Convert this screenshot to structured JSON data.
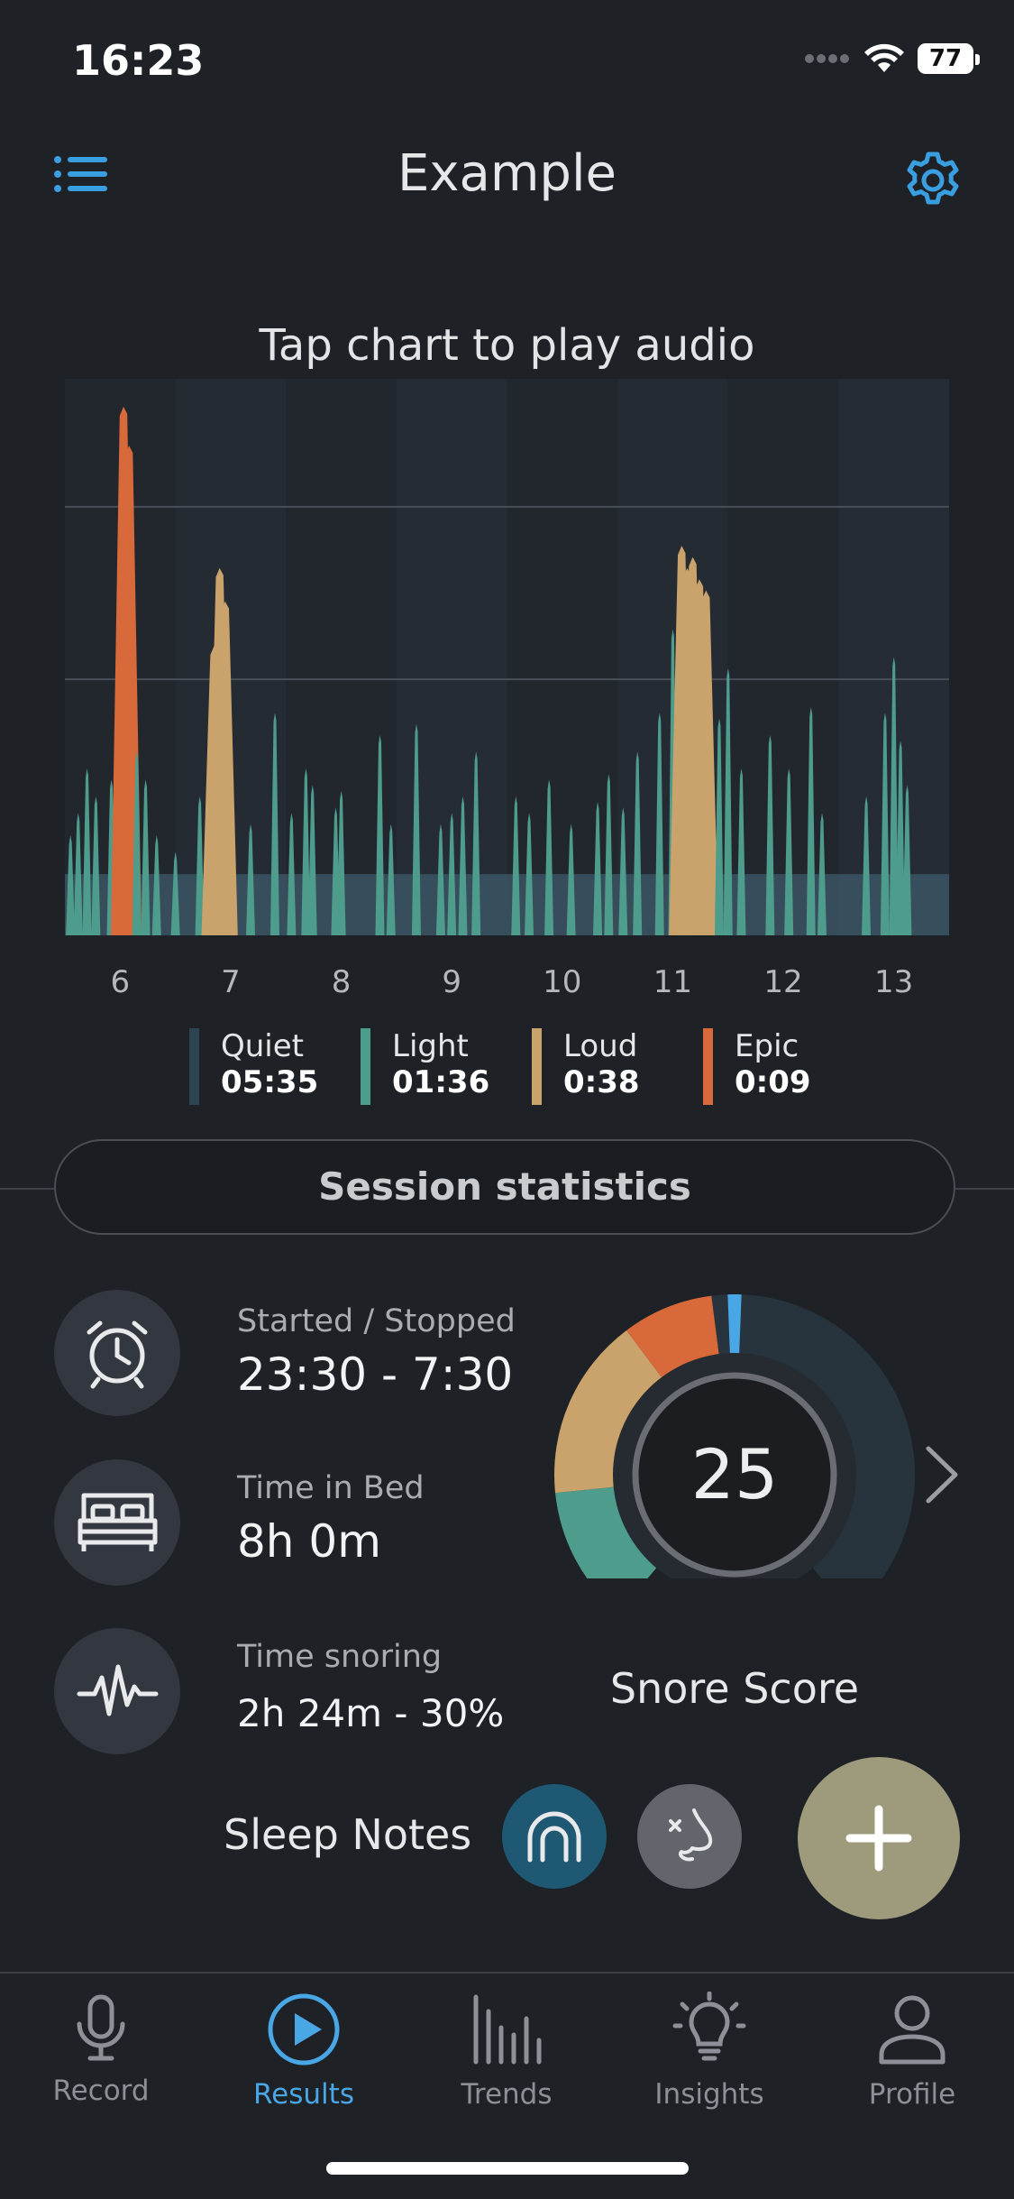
{
  "status_bar": {
    "time": "16:23",
    "battery": "77"
  },
  "header": {
    "title": "Example",
    "menu_icon": "list-icon",
    "settings_icon": "gear-icon"
  },
  "chart_hint": "Tap chart to play audio",
  "colors": {
    "quiet": "#2f4452",
    "light": "#4e9c8c",
    "loud": "#c9a36b",
    "epic": "#d8693a",
    "accent": "#4aa7e6"
  },
  "chart_data": {
    "type": "area",
    "x_ticks": [
      "6",
      "7",
      "8",
      "9",
      "10",
      "11",
      "12",
      "13"
    ],
    "xlim": [
      5.5,
      13.5
    ],
    "ylim": [
      0,
      1
    ],
    "grid": "horizontal",
    "baseline_level": 0.11,
    "events": [
      {
        "t": 5.55,
        "h": 0.18,
        "c": "light"
      },
      {
        "t": 5.62,
        "h": 0.22,
        "c": "light"
      },
      {
        "t": 5.7,
        "h": 0.3,
        "c": "light"
      },
      {
        "t": 5.78,
        "h": 0.25,
        "c": "light"
      },
      {
        "t": 5.92,
        "h": 0.28,
        "c": "light"
      },
      {
        "t": 5.97,
        "h": 0.4,
        "c": "light"
      },
      {
        "t": 6.03,
        "h": 0.95,
        "c": "epic"
      },
      {
        "t": 6.08,
        "h": 0.88,
        "c": "epic"
      },
      {
        "t": 6.15,
        "h": 0.33,
        "c": "light"
      },
      {
        "t": 6.23,
        "h": 0.28,
        "c": "light"
      },
      {
        "t": 6.33,
        "h": 0.18,
        "c": "light"
      },
      {
        "t": 6.5,
        "h": 0.15,
        "c": "light"
      },
      {
        "t": 6.72,
        "h": 0.25,
        "c": "light"
      },
      {
        "t": 6.85,
        "h": 0.52,
        "c": "loud"
      },
      {
        "t": 6.9,
        "h": 0.66,
        "c": "loud"
      },
      {
        "t": 6.95,
        "h": 0.6,
        "c": "loud"
      },
      {
        "t": 7.18,
        "h": 0.2,
        "c": "light"
      },
      {
        "t": 7.4,
        "h": 0.4,
        "c": "light"
      },
      {
        "t": 7.55,
        "h": 0.22,
        "c": "light"
      },
      {
        "t": 7.68,
        "h": 0.3,
        "c": "light"
      },
      {
        "t": 7.74,
        "h": 0.27,
        "c": "light"
      },
      {
        "t": 7.95,
        "h": 0.23,
        "c": "light"
      },
      {
        "t": 8.0,
        "h": 0.26,
        "c": "light"
      },
      {
        "t": 8.35,
        "h": 0.36,
        "c": "light"
      },
      {
        "t": 8.45,
        "h": 0.2,
        "c": "light"
      },
      {
        "t": 8.68,
        "h": 0.38,
        "c": "light"
      },
      {
        "t": 8.9,
        "h": 0.2,
        "c": "light"
      },
      {
        "t": 9.0,
        "h": 0.22,
        "c": "light"
      },
      {
        "t": 9.1,
        "h": 0.25,
        "c": "light"
      },
      {
        "t": 9.22,
        "h": 0.33,
        "c": "light"
      },
      {
        "t": 9.58,
        "h": 0.25,
        "c": "light"
      },
      {
        "t": 9.7,
        "h": 0.22,
        "c": "light"
      },
      {
        "t": 9.88,
        "h": 0.28,
        "c": "light"
      },
      {
        "t": 10.08,
        "h": 0.2,
        "c": "light"
      },
      {
        "t": 10.32,
        "h": 0.24,
        "c": "light"
      },
      {
        "t": 10.42,
        "h": 0.29,
        "c": "light"
      },
      {
        "t": 10.55,
        "h": 0.23,
        "c": "light"
      },
      {
        "t": 10.68,
        "h": 0.33,
        "c": "light"
      },
      {
        "t": 10.88,
        "h": 0.4,
        "c": "light"
      },
      {
        "t": 11.0,
        "h": 0.55,
        "c": "light"
      },
      {
        "t": 11.08,
        "h": 0.7,
        "c": "loud"
      },
      {
        "t": 11.13,
        "h": 0.66,
        "c": "loud"
      },
      {
        "t": 11.18,
        "h": 0.68,
        "c": "loud"
      },
      {
        "t": 11.24,
        "h": 0.64,
        "c": "loud"
      },
      {
        "t": 11.3,
        "h": 0.62,
        "c": "loud"
      },
      {
        "t": 11.42,
        "h": 0.39,
        "c": "light"
      },
      {
        "t": 11.5,
        "h": 0.48,
        "c": "light"
      },
      {
        "t": 11.62,
        "h": 0.3,
        "c": "light"
      },
      {
        "t": 11.88,
        "h": 0.36,
        "c": "light"
      },
      {
        "t": 12.05,
        "h": 0.3,
        "c": "light"
      },
      {
        "t": 12.25,
        "h": 0.41,
        "c": "light"
      },
      {
        "t": 12.35,
        "h": 0.22,
        "c": "light"
      },
      {
        "t": 12.75,
        "h": 0.25,
        "c": "light"
      },
      {
        "t": 12.92,
        "h": 0.4,
        "c": "light"
      },
      {
        "t": 13.0,
        "h": 0.5,
        "c": "light"
      },
      {
        "t": 13.06,
        "h": 0.35,
        "c": "light"
      },
      {
        "t": 13.12,
        "h": 0.27,
        "c": "light"
      }
    ],
    "legend": [
      {
        "name": "Quiet",
        "value": "05:35",
        "color": "#2f4452"
      },
      {
        "name": "Light",
        "value": "01:36",
        "color": "#4e9c8c"
      },
      {
        "name": "Loud",
        "value": "0:38",
        "color": "#c9a36b"
      },
      {
        "name": "Epic",
        "value": "0:09",
        "color": "#d8693a"
      }
    ]
  },
  "session": {
    "button_label": "Session statistics",
    "stats": [
      {
        "label": "Started / Stopped",
        "value": "23:30 - 7:30",
        "icon": "alarm-clock-icon"
      },
      {
        "label": "Time in Bed",
        "value": "8h 0m",
        "icon": "bed-icon"
      },
      {
        "label": "Time snoring",
        "value": "2h 24m - 30%",
        "icon": "sound-wave-icon"
      }
    ],
    "snore_score": {
      "value": "25",
      "label": "Snore Score",
      "marker_fraction": 0.5,
      "segments": [
        {
          "name": "Light",
          "fraction": 0.15,
          "color": "#4e9c8c"
        },
        {
          "name": "Loud",
          "fraction": 0.2,
          "color": "#c9a36b"
        },
        {
          "name": "Epic",
          "fraction": 0.1,
          "color": "#d8693a"
        },
        {
          "name": "Quiet",
          "fraction": 0.5,
          "color": "#27343d"
        }
      ]
    }
  },
  "sleep_notes": {
    "label": "Sleep Notes",
    "add_icon": "plus-icon"
  },
  "tabs": [
    {
      "label": "Record",
      "icon": "microphone-icon"
    },
    {
      "label": "Results",
      "icon": "play-circle-icon",
      "active": true
    },
    {
      "label": "Trends",
      "icon": "bar-chart-icon"
    },
    {
      "label": "Insights",
      "icon": "lightbulb-icon"
    },
    {
      "label": "Profile",
      "icon": "person-icon"
    }
  ]
}
